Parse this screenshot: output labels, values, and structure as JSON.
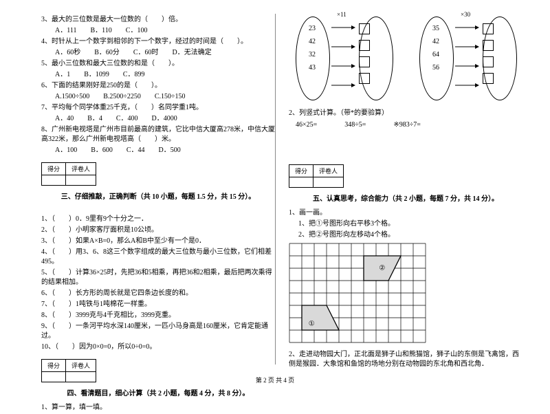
{
  "footer": "第 2 页 共 4 页",
  "left": {
    "q3": {
      "stem": "3、最大的三位数是最大一位数的（　　）倍。",
      "opts": "A．111　　B．110　　C．100"
    },
    "q4": {
      "stem": "4、时针从上一个数字到相邻的下一个数字，经过的时间是（　　）。",
      "opts": "A．60秒　　B．60分　　C．60时　　D．无法确定"
    },
    "q5": {
      "stem": "5、最小三位数和最大三位数的和是（　　）。",
      "opts": "A．1　　B．1099　　C．899"
    },
    "q6": {
      "stem": "6、下面的结果刚好是250的是（　　）。",
      "opts": "A.1500÷500　　B.2500÷2250　　C.150÷150"
    },
    "q7": {
      "stem": "7、平均每个同学体重25千克，（　　）名同学重1吨。",
      "opts": "A．40　　B．4　　C．400　　D．4000"
    },
    "q8": {
      "stem": "8、广州新电视塔是广州市目前最高的建筑，它比中信大厦高278米，中信大厦高322米，那么广州新电视塔高（　　）米。",
      "opts": "A．100　　B．600　　C．44　　D．500"
    },
    "score_label": "得分",
    "grader_label": "评卷人",
    "sec3_title": "三、仔细推敲，正确判断（共 10 小题，每题 1.5 分，共 15 分）。",
    "j1": "1、（　　）0．9里有9个十分之一．",
    "j2": "2、（　　）小明家客厅面积是10公顷。",
    "j3": "3、（　　）如果A×B=0，那么A和B中至少有一个是0．",
    "j4": "4、（　　）用3、6、8这三个数字组成的最大三位数与最小三位数，它们相差495。",
    "j5": "5、（　　）计算36×25时，先把36和5相乘，再把36和2相乘，最后把两次乘得的结果相加。",
    "j6": "6、（　　）长方形的周长就是它四条边长度的和。",
    "j7": "7、（　　）1吨铁与1吨棉花一样重。",
    "j8": "8、（　　）3999克与4千克相比，3999克重。",
    "j9": "9、（　　）一条河平均水深140厘米，一匹小马身高是160厘米，它肯定能通过。",
    "j10": "10、（　　）因为0×0=0，所以0÷0=0。",
    "sec4_title": "四、看清题目，细心计算（共 2 小题，每题 4 分，共 8 分）。",
    "c1": "1、算一算，填一填。"
  },
  "right": {
    "oval1_nums": [
      "23",
      "42",
      "32",
      "43"
    ],
    "oval1_mult": "×11",
    "oval2_nums": [
      "35",
      "42",
      "64",
      "56"
    ],
    "oval2_mult": "×30",
    "c2": "2、列竖式计算。（带*的要验算）",
    "calc_a": "46×25= ",
    "calc_b": "348÷5= ",
    "calc_c": "※983÷7= ",
    "score_label": "得分",
    "grader_label": "评卷人",
    "sec5_title": "五、认真思考，综合能力（共 2 小题，每题 7 分，共 14 分）。",
    "p1": "1、画一画。",
    "p1a": "1、把①号图形向右平移3个格。",
    "p1b": "2、把②号图形向左移动4个格。",
    "p2": "2、走进动物园大门，正北面是狮子山和熊猫馆，狮子山的东侧是飞禽馆，西侧是猴园．大象馆和鱼馆的场地分别在动物园的东北角和西北角．",
    "shape_label_1": "①",
    "shape_label_2": "②",
    "grid": {
      "cols": 11,
      "rows": 8,
      "cell": 18,
      "stroke": "#000000"
    }
  }
}
